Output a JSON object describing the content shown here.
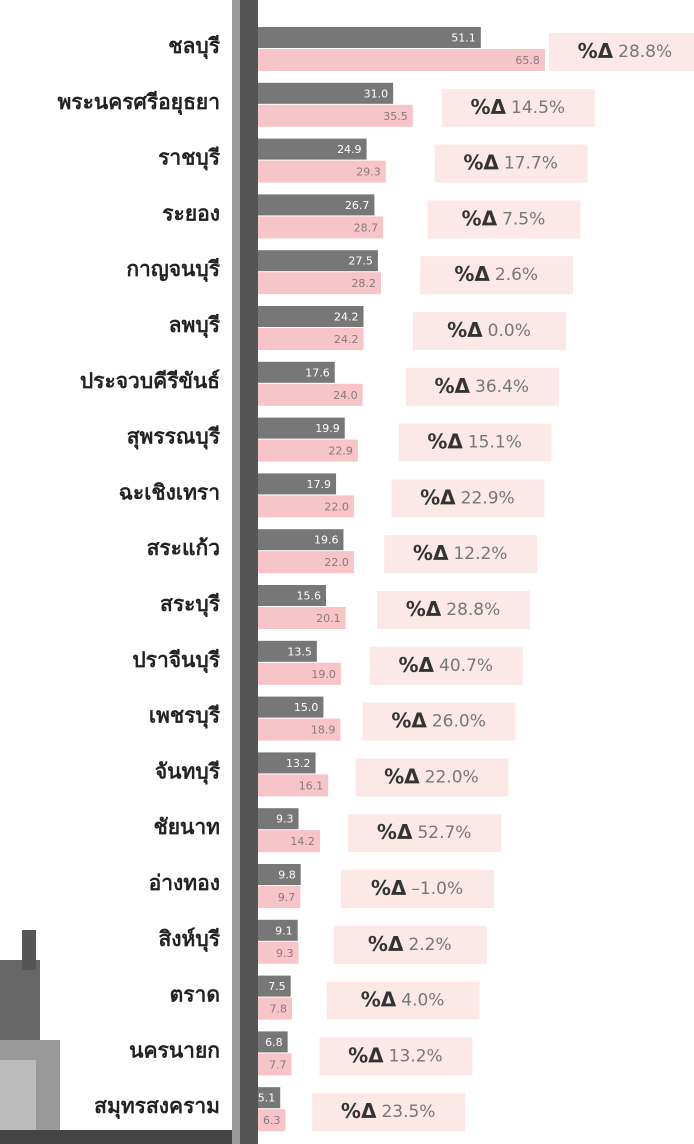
{
  "chart_data": {
    "type": "bar",
    "orientation": "horizontal",
    "categories": [
      "ชลบุรี",
      "พระนครศรีอยุธยา",
      "ราชบุรี",
      "ระยอง",
      "กาญจนบุรี",
      "ลพบุรี",
      "ประจวบคีรีขันธ์",
      "สุพรรณบุรี",
      "ฉะเชิงเทรา",
      "สระแก้ว",
      "สระบุรี",
      "ปราจีนบุรี",
      "เพชรบุรี",
      "จันทบุรี",
      "ชัยนาท",
      "อ่างทอง",
      "สิงห์บุรี",
      "ตราด",
      "นครนายก",
      "สมุทรสงคราม"
    ],
    "series": [
      {
        "color": "#777777",
        "label_color": "#ffffff",
        "values": [
          51.1,
          31.0,
          24.9,
          26.7,
          27.5,
          24.2,
          17.6,
          19.9,
          17.9,
          19.6,
          15.6,
          13.5,
          15.0,
          13.2,
          9.3,
          9.8,
          9.1,
          7.5,
          6.8,
          5.1
        ],
        "value_labels": [
          "51.1",
          "31.0",
          "24.9",
          "26.7",
          "27.5",
          "24.2",
          "17.6",
          "19.9",
          "17.9",
          "19.6",
          "15.6",
          "13.5",
          "15.0",
          "13.2",
          "9.3",
          "9.8",
          "9.1",
          "7.5",
          "6.8",
          "5.1"
        ]
      },
      {
        "color": "#f7c4c8",
        "label_color": "#8a7a7c",
        "values": [
          65.8,
          35.5,
          29.3,
          28.7,
          28.2,
          24.2,
          24.0,
          22.9,
          22.0,
          22.0,
          20.1,
          19.0,
          18.9,
          16.1,
          14.2,
          9.7,
          9.3,
          7.8,
          7.7,
          6.3
        ],
        "value_labels": [
          "65.8",
          "35.5",
          "29.3",
          "28.7",
          "28.2",
          "24.2",
          "24.0",
          "22.9",
          "22.0",
          "22.0",
          "20.1",
          "19.0",
          "18.9",
          "16.1",
          "14.2",
          "9.7",
          "9.3",
          "7.8",
          "7.7",
          "6.3"
        ]
      }
    ],
    "changes": {
      "label": "%Δ",
      "box_color": "#fde8e8",
      "color": "#777777",
      "zero_color": "#8a4fbf",
      "negative_color": "#e02020",
      "values": [
        28.8,
        14.5,
        17.7,
        7.5,
        2.6,
        0.0,
        36.4,
        15.1,
        22.9,
        12.2,
        28.8,
        40.7,
        26.0,
        22.0,
        52.7,
        -1.0,
        2.2,
        4.0,
        13.2,
        23.5
      ],
      "value_labels": [
        "28.8%",
        "14.5%",
        "17.7%",
        "7.5%",
        "2.6%",
        "0.0%",
        "36.4%",
        "15.1%",
        "22.9%",
        "12.2%",
        "28.8%",
        "40.7%",
        "26.0%",
        "22.0%",
        "52.7%",
        "–1.0%",
        "2.2%",
        "4.0%",
        "13.2%",
        "23.5%"
      ]
    },
    "xlim": [
      0,
      100
    ]
  }
}
